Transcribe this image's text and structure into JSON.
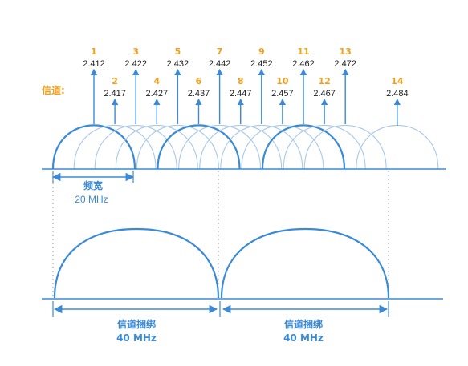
{
  "colors": {
    "accent": "#3b8ad8",
    "accent_light": "#a9c9ea",
    "label_orange": "#f0a020",
    "text_dark": "#222222",
    "dash": "#999999"
  },
  "channel_label": "信道:",
  "channels": [
    {
      "num": "1",
      "freq": "2.412",
      "row": "upper"
    },
    {
      "num": "2",
      "freq": "2.417",
      "row": "lower"
    },
    {
      "num": "3",
      "freq": "2.422",
      "row": "upper"
    },
    {
      "num": "4",
      "freq": "2.427",
      "row": "lower"
    },
    {
      "num": "5",
      "freq": "2.432",
      "row": "upper"
    },
    {
      "num": "6",
      "freq": "2.437",
      "row": "lower"
    },
    {
      "num": "7",
      "freq": "2.442",
      "row": "upper"
    },
    {
      "num": "8",
      "freq": "2.447",
      "row": "lower"
    },
    {
      "num": "9",
      "freq": "2.452",
      "row": "upper"
    },
    {
      "num": "10",
      "freq": "2.457",
      "row": "lower"
    },
    {
      "num": "11",
      "freq": "2.462",
      "row": "upper"
    },
    {
      "num": "12",
      "freq": "2.467",
      "row": "lower"
    },
    {
      "num": "13",
      "freq": "2.472",
      "row": "upper"
    },
    {
      "num": "14",
      "freq": "2.484",
      "row": "lower"
    }
  ],
  "highlighted_channels": [
    "1",
    "6",
    "11"
  ],
  "bandwidth": {
    "label": "频宽",
    "value": "20 MHz"
  },
  "bonded": [
    {
      "label": "信道捆绑",
      "value": "40 MHz"
    },
    {
      "label": "信道捆绑",
      "value": "40 MHz"
    }
  ]
}
